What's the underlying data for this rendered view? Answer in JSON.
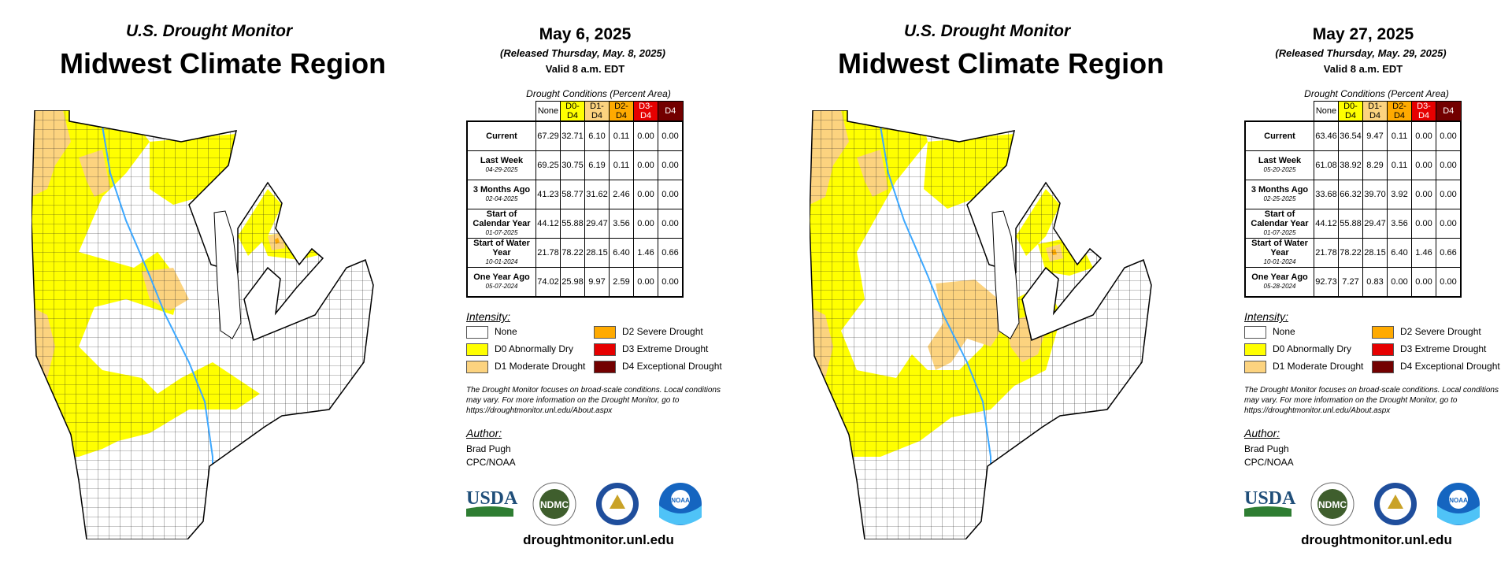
{
  "colors": {
    "none": "#ffffff",
    "d0": "#ffff00",
    "d1": "#fcd37f",
    "d2": "#ffaa00",
    "d3": "#e60000",
    "d4": "#730000",
    "water": "#3da8ff"
  },
  "legend": {
    "title": "Intensity:",
    "items": [
      {
        "label": "None",
        "color": "#ffffff"
      },
      {
        "label": "D0 Abnormally Dry",
        "color": "#ffff00"
      },
      {
        "label": "D1 Moderate Drought",
        "color": "#fcd37f"
      },
      {
        "label": "D2 Severe Drought",
        "color": "#ffaa00"
      },
      {
        "label": "D3 Extreme Drought",
        "color": "#e60000"
      },
      {
        "label": "D4 Exceptional Drought",
        "color": "#730000"
      }
    ]
  },
  "table": {
    "caption": "Drought Conditions (Percent Area)",
    "columns": [
      "None",
      "D0-D4",
      "D1-D4",
      "D2-D4",
      "D3-D4",
      "D4"
    ],
    "column_colors": [
      "#ffffff",
      "#ffff00",
      "#fcd37f",
      "#ffaa00",
      "#e60000",
      "#730000"
    ]
  },
  "note": "The Drought Monitor focuses on broad-scale conditions. Local conditions may vary. For more information on the Drought Monitor, go to https://droughtmonitor.unl.edu/About.aspx",
  "author": {
    "title": "Author:",
    "name": "Brad Pugh",
    "org": "CPC/NOAA"
  },
  "footer_url": "droughtmonitor.unl.edu",
  "logos": [
    "USDA",
    "NDMC",
    "NOAA"
  ],
  "panels": [
    {
      "subtitle": "U.S. Drought Monitor",
      "title": "Midwest Climate Region",
      "date": "May 6, 2025",
      "released": "(Released Thursday, May. 8, 2025)",
      "valid": "Valid 8 a.m. EDT",
      "rows": [
        {
          "label": "Current",
          "date": "",
          "values": [
            "67.29",
            "32.71",
            "6.10",
            "0.11",
            "0.00",
            "0.00"
          ]
        },
        {
          "label": "Last Week",
          "date": "04-29-2025",
          "values": [
            "69.25",
            "30.75",
            "6.19",
            "0.11",
            "0.00",
            "0.00"
          ]
        },
        {
          "label": "3 Months Ago",
          "date": "02-04-2025",
          "values": [
            "41.23",
            "58.77",
            "31.62",
            "2.46",
            "0.00",
            "0.00"
          ]
        },
        {
          "label": "Start of Calendar Year",
          "date": "01-07-2025",
          "values": [
            "44.12",
            "55.88",
            "29.47",
            "3.56",
            "0.00",
            "0.00"
          ]
        },
        {
          "label": "Start of Water Year",
          "date": "10-01-2024",
          "values": [
            "21.78",
            "78.22",
            "28.15",
            "6.40",
            "1.46",
            "0.66"
          ]
        },
        {
          "label": "One Year Ago",
          "date": "05-07-2024",
          "values": [
            "74.02",
            "25.98",
            "9.97",
            "2.59",
            "0.00",
            "0.00"
          ]
        }
      ]
    },
    {
      "subtitle": "U.S. Drought Monitor",
      "title": "Midwest Climate Region",
      "date": "May 27, 2025",
      "released": "(Released Thursday, May. 29, 2025)",
      "valid": "Valid 8 a.m. EDT",
      "rows": [
        {
          "label": "Current",
          "date": "",
          "values": [
            "63.46",
            "36.54",
            "9.47",
            "0.11",
            "0.00",
            "0.00"
          ]
        },
        {
          "label": "Last Week",
          "date": "05-20-2025",
          "values": [
            "61.08",
            "38.92",
            "8.29",
            "0.11",
            "0.00",
            "0.00"
          ]
        },
        {
          "label": "3 Months Ago",
          "date": "02-25-2025",
          "values": [
            "33.68",
            "66.32",
            "39.70",
            "3.92",
            "0.00",
            "0.00"
          ]
        },
        {
          "label": "Start of Calendar Year",
          "date": "01-07-2025",
          "values": [
            "44.12",
            "55.88",
            "29.47",
            "3.56",
            "0.00",
            "0.00"
          ]
        },
        {
          "label": "Start of Water Year",
          "date": "10-01-2024",
          "values": [
            "21.78",
            "78.22",
            "28.15",
            "6.40",
            "1.46",
            "0.66"
          ]
        },
        {
          "label": "One Year Ago",
          "date": "05-28-2024",
          "values": [
            "92.73",
            "7.27",
            "0.83",
            "0.00",
            "0.00",
            "0.00"
          ]
        }
      ]
    }
  ]
}
